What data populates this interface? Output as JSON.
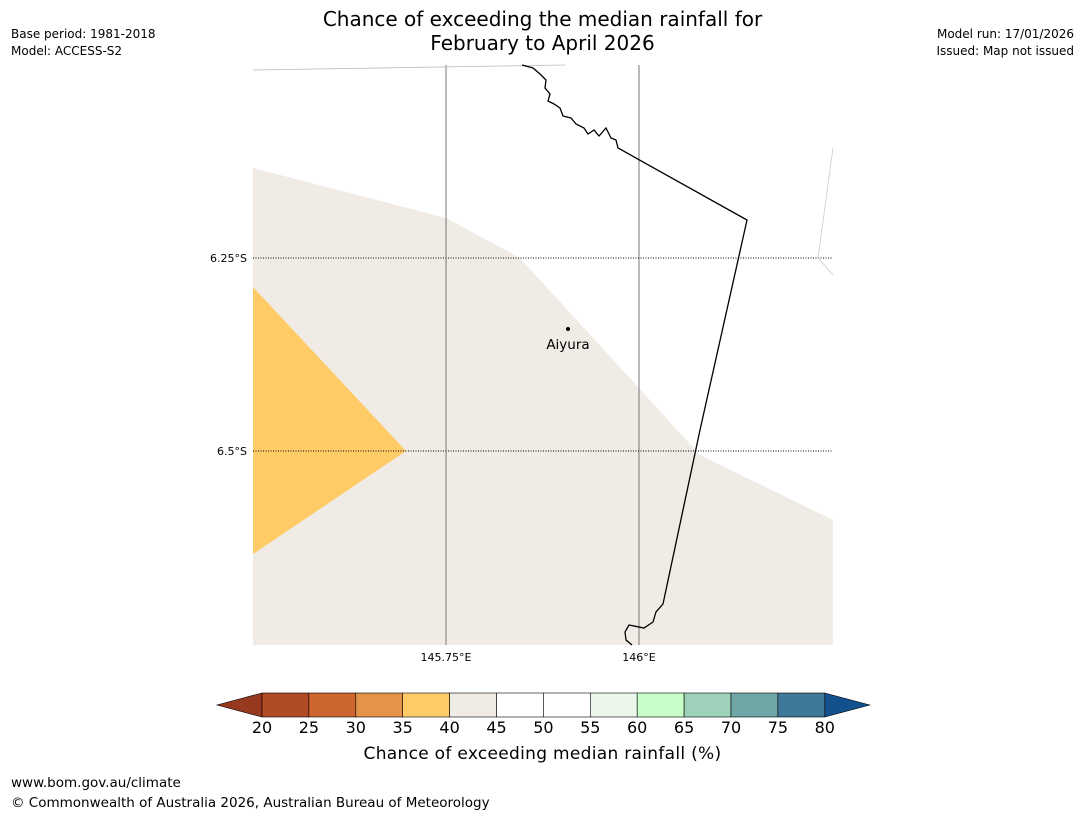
{
  "title": {
    "line1": "Chance of exceeding the median rainfall for",
    "line2": "February to April 2026"
  },
  "meta_left": {
    "base_period": "Base period: 1981-2018",
    "model": "Model: ACCESS-S2"
  },
  "meta_right": {
    "model_run": "Model run: 17/01/2026",
    "issued": "Issued: Map not issued"
  },
  "map": {
    "place_label": "Aiyura",
    "lat_labels": [
      "6.25°S",
      "6.5°S"
    ],
    "lon_labels": [
      "145.75°E",
      "146°E"
    ],
    "colors": {
      "band_40_45": "#f0ebe5",
      "band_35_40": "#ffcb66"
    }
  },
  "colorbar": {
    "title": "Chance of exceeding median rainfall (%)",
    "ticks": [
      "20",
      "25",
      "30",
      "35",
      "40",
      "45",
      "50",
      "55",
      "60",
      "65",
      "70",
      "75",
      "80"
    ],
    "under_color": "#97391f",
    "over_color": "#12518d",
    "colors": [
      "#b04b26",
      "#cd6630",
      "#e3934a",
      "#ffcb66",
      "#f0ebe5",
      "#ffffff",
      "#ffffff",
      "#ebf7eb",
      "#c8ffc8",
      "#9ed1b9",
      "#6ea6a6",
      "#3f7898"
    ]
  },
  "footer": {
    "url": "www.bom.gov.au/climate",
    "copyright": "© Commonwealth of Australia 2026, Australian Bureau of Meteorology"
  }
}
